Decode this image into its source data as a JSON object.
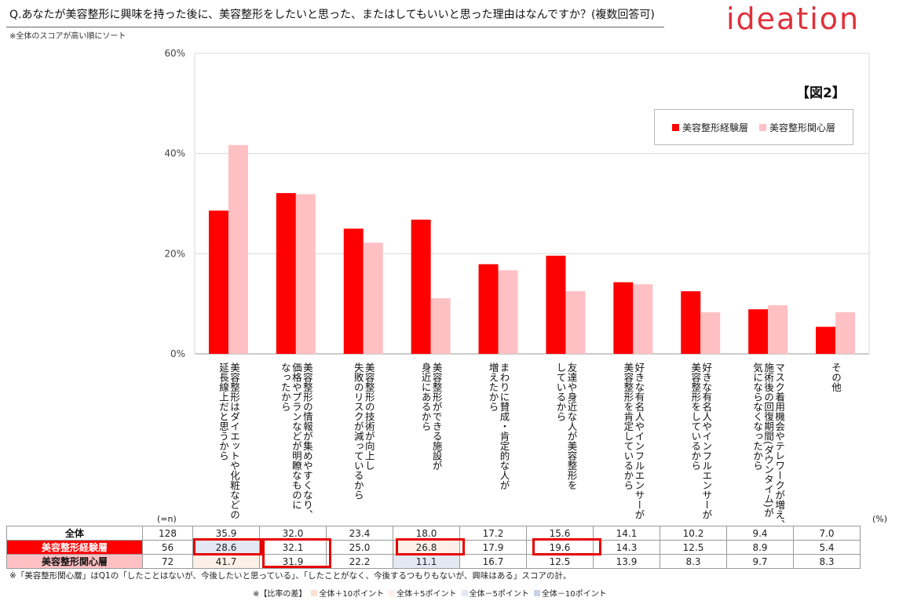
{
  "title": "Q.あなたが美容整形に興味を持った後に、美容整形をしたいと思った、またはしてもいいと思った理由はなんですか？(複数回答可)",
  "sort_note": "※全体のスコアが高い順にソート",
  "logo": "ideation",
  "figure_label": "【図2】",
  "colors": {
    "experienced": "#ff0000",
    "interested": "#ffc0c4",
    "plus10": "#fbe0d2",
    "plus5": "#fdf0e8",
    "minus5": "#e3e8f2",
    "minus10": "#c7d2e6",
    "highlight": "#e60000"
  },
  "chart_data": {
    "type": "bar",
    "ylim": [
      0,
      60
    ],
    "yticks": [
      "0%",
      "20%",
      "40%",
      "60%"
    ],
    "grid": true,
    "legend_position": "top-right",
    "categories": [
      "美容整形はダイエットや化粧などの\n延長線上だと思うから",
      "美容整形の情報が集めやすくなり、\n価格やプランなどが明瞭なものに\nなったから",
      "美容整形の技術が向上し\n失敗のリスクが減っているから",
      "美容整形ができる施設が\n身近にあるから",
      "まわりに賛成・肯定的な人が\n増えたから",
      "友達や身近な人が美容整形を\nしているから",
      "好きな有名人やインフルエンサーが\n美容整形を肯定しているから",
      "好きな有名人やインフルエンサーが\n美容整形をしているから",
      "マスク着用機会やテレワークが増え、\n施術後の回復期間(ダウンタイム)が\n気にならなくなったから",
      "その他"
    ],
    "series": [
      {
        "name": "美容整形経験層",
        "values": [
          28.6,
          32.1,
          25.0,
          26.8,
          17.9,
          19.6,
          14.3,
          12.5,
          8.9,
          5.4
        ]
      },
      {
        "name": "美容整形関心層",
        "values": [
          41.7,
          31.9,
          22.2,
          11.1,
          16.7,
          12.5,
          13.9,
          8.3,
          9.7,
          8.3
        ]
      }
    ]
  },
  "table": {
    "n_label": "(=n)",
    "unit_label": "(%)",
    "rows": [
      {
        "name": "全体",
        "n": "128",
        "values": [
          "35.9",
          "32.0",
          "23.4",
          "18.0",
          "17.2",
          "15.6",
          "14.1",
          "10.2",
          "9.4",
          "7.0"
        ],
        "shade": [
          "",
          "",
          "",
          "",
          "",
          "",
          "",
          "",
          "",
          ""
        ]
      },
      {
        "name": "美容整形経験層",
        "n": "56",
        "values": [
          "28.6",
          "32.1",
          "25.0",
          "26.8",
          "17.9",
          "19.6",
          "14.3",
          "12.5",
          "8.9",
          "5.4"
        ],
        "shade": [
          "minus5",
          "",
          "",
          "plus5",
          "",
          "",
          "",
          "",
          "",
          ""
        ]
      },
      {
        "name": "美容整形関心層",
        "n": "72",
        "values": [
          "41.7",
          "31.9",
          "22.2",
          "11.1",
          "16.7",
          "12.5",
          "13.9",
          "8.3",
          "9.7",
          "8.3"
        ],
        "shade": [
          "plus5",
          "",
          "",
          "minus5",
          "",
          "",
          "",
          "",
          "",
          ""
        ]
      }
    ]
  },
  "footnote": "※「美容整形関心層」はQ1の「したことはないが、今後したいと思っている」、「したことがなく、今後するつもりもないが、興味はある」スコアの計。",
  "diff_legend": {
    "title": "※【比率の差】",
    "items": [
      {
        "label": "全体＋10ポイント",
        "color_key": "plus10"
      },
      {
        "label": "全体＋5ポイント",
        "color_key": "plus5"
      },
      {
        "label": "全体－5ポイント",
        "color_key": "minus5"
      },
      {
        "label": "全体－10ポイント",
        "color_key": "minus10"
      }
    ]
  }
}
